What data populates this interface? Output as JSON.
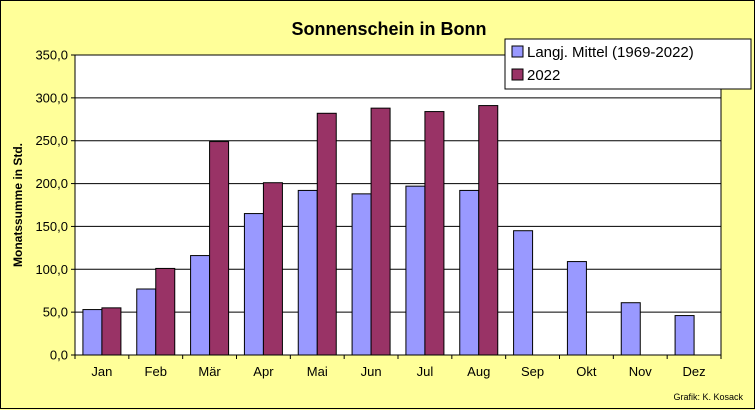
{
  "chart_data": {
    "type": "bar",
    "title": "Sonnenschein in Bonn",
    "ylabel": "Monatssumme in Std.",
    "xlabel": "",
    "ylim": [
      0,
      350
    ],
    "yticks": [
      "0,0",
      "50,0",
      "100,0",
      "150,0",
      "200,0",
      "250,0",
      "300,0",
      "350,0"
    ],
    "categories": [
      "Jan",
      "Feb",
      "Mär",
      "Apr",
      "Mai",
      "Jun",
      "Jul",
      "Aug",
      "Sep",
      "Okt",
      "Nov",
      "Dez"
    ],
    "series": [
      {
        "name": "Langj. Mittel (1969-2022)",
        "color": "#9999ff",
        "values": [
          53,
          77,
          116,
          165,
          192,
          188,
          197,
          192,
          145,
          109,
          61,
          46
        ]
      },
      {
        "name": "2022",
        "color": "#993366",
        "values": [
          55,
          101,
          249,
          201,
          282,
          288,
          284,
          291,
          null,
          null,
          null,
          null
        ]
      }
    ],
    "grid": true,
    "legend_position": "top-right",
    "plot_background": "#ffffff",
    "credit": "Grafik:  K. Kosack"
  }
}
